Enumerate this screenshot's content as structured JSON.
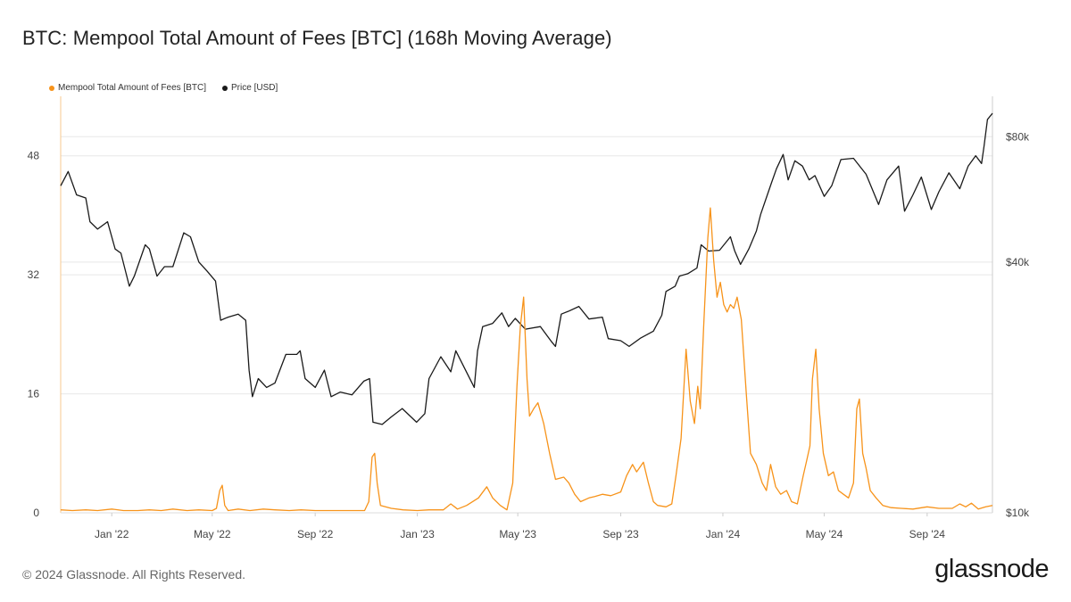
{
  "title": "BTC: Mempool Total Amount of Fees [BTC] (168h Moving Average)",
  "footer": "© 2024 Glassnode. All Rights Reserved.",
  "logo": "glassnode",
  "colors": {
    "fees": "#f7931a",
    "price": "#1a1a1a",
    "grid": "#e8e8e8"
  },
  "chart_data": {
    "type": "line",
    "title": "BTC: Mempool Total Amount of Fees [BTC] (168h Moving Average)",
    "legend": "top-left",
    "grid": true,
    "x_ticks": [
      "Jan '22",
      "May '22",
      "Sep '22",
      "Jan '23",
      "May '23",
      "Sep '23",
      "Jan '24",
      "May '24",
      "Sep '24"
    ],
    "x_tick_dates": [
      "2022-01-01",
      "2022-05-01",
      "2022-09-01",
      "2023-01-01",
      "2023-05-01",
      "2023-09-01",
      "2024-01-01",
      "2024-05-01",
      "2024-09-01"
    ],
    "xlim": [
      "2021-11-01",
      "2024-11-18"
    ],
    "y_left": {
      "ticks": [
        "0",
        "16",
        "32",
        "48"
      ],
      "values": [
        0,
        16,
        32,
        48
      ],
      "ylim": [
        0,
        56
      ]
    },
    "y_right": {
      "ticks": [
        "$10k",
        "$40k",
        "$80k"
      ],
      "values": [
        10000,
        40000,
        80000
      ],
      "scale": "log",
      "ylim": [
        10000,
        100000
      ]
    },
    "series": [
      {
        "name": "Mempool Total Amount of Fees [BTC]",
        "axis": "left",
        "points": [
          [
            "2021-11-01",
            0.4
          ],
          [
            "2021-11-15",
            0.3
          ],
          [
            "2021-12-01",
            0.4
          ],
          [
            "2021-12-15",
            0.3
          ],
          [
            "2022-01-01",
            0.5
          ],
          [
            "2022-01-15",
            0.3
          ],
          [
            "2022-02-01",
            0.3
          ],
          [
            "2022-02-15",
            0.4
          ],
          [
            "2022-03-01",
            0.3
          ],
          [
            "2022-03-15",
            0.5
          ],
          [
            "2022-04-01",
            0.3
          ],
          [
            "2022-04-15",
            0.4
          ],
          [
            "2022-05-01",
            0.3
          ],
          [
            "2022-05-06",
            0.6
          ],
          [
            "2022-05-10",
            3.0
          ],
          [
            "2022-05-13",
            3.7
          ],
          [
            "2022-05-16",
            1.0
          ],
          [
            "2022-05-20",
            0.3
          ],
          [
            "2022-06-01",
            0.5
          ],
          [
            "2022-06-15",
            0.3
          ],
          [
            "2022-07-01",
            0.5
          ],
          [
            "2022-07-15",
            0.4
          ],
          [
            "2022-08-01",
            0.3
          ],
          [
            "2022-08-15",
            0.4
          ],
          [
            "2022-09-01",
            0.3
          ],
          [
            "2022-09-15",
            0.3
          ],
          [
            "2022-10-01",
            0.3
          ],
          [
            "2022-10-15",
            0.3
          ],
          [
            "2022-10-30",
            0.3
          ],
          [
            "2022-11-04",
            1.5
          ],
          [
            "2022-11-08",
            7.5
          ],
          [
            "2022-11-11",
            8.0
          ],
          [
            "2022-11-14",
            4.0
          ],
          [
            "2022-11-18",
            1.0
          ],
          [
            "2022-12-01",
            0.6
          ],
          [
            "2022-12-15",
            0.4
          ],
          [
            "2023-01-01",
            0.3
          ],
          [
            "2023-01-15",
            0.4
          ],
          [
            "2023-02-01",
            0.4
          ],
          [
            "2023-02-10",
            1.2
          ],
          [
            "2023-02-18",
            0.5
          ],
          [
            "2023-03-01",
            1.0
          ],
          [
            "2023-03-15",
            2.0
          ],
          [
            "2023-03-25",
            3.5
          ],
          [
            "2023-04-01",
            2.0
          ],
          [
            "2023-04-10",
            1.0
          ],
          [
            "2023-04-18",
            0.4
          ],
          [
            "2023-04-25",
            4.0
          ],
          [
            "2023-04-30",
            17.0
          ],
          [
            "2023-05-04",
            25.0
          ],
          [
            "2023-05-08",
            29.0
          ],
          [
            "2023-05-12",
            18.0
          ],
          [
            "2023-05-15",
            13.0
          ],
          [
            "2023-05-20",
            14.0
          ],
          [
            "2023-05-25",
            14.8
          ],
          [
            "2023-06-01",
            12.0
          ],
          [
            "2023-06-08",
            8.0
          ],
          [
            "2023-06-15",
            4.5
          ],
          [
            "2023-06-25",
            4.8
          ],
          [
            "2023-07-01",
            4.0
          ],
          [
            "2023-07-08",
            2.5
          ],
          [
            "2023-07-15",
            1.5
          ],
          [
            "2023-07-25",
            2.0
          ],
          [
            "2023-08-01",
            2.2
          ],
          [
            "2023-08-10",
            2.5
          ],
          [
            "2023-08-20",
            2.3
          ],
          [
            "2023-09-01",
            2.8
          ],
          [
            "2023-09-08",
            5.0
          ],
          [
            "2023-09-15",
            6.5
          ],
          [
            "2023-09-20",
            5.5
          ],
          [
            "2023-09-28",
            6.8
          ],
          [
            "2023-10-04",
            4.0
          ],
          [
            "2023-10-10",
            1.5
          ],
          [
            "2023-10-15",
            1.0
          ],
          [
            "2023-10-25",
            0.8
          ],
          [
            "2023-11-01",
            1.2
          ],
          [
            "2023-11-06",
            5.0
          ],
          [
            "2023-11-12",
            10.0
          ],
          [
            "2023-11-18",
            22.0
          ],
          [
            "2023-11-23",
            15.0
          ],
          [
            "2023-11-28",
            12.0
          ],
          [
            "2023-12-02",
            17.0
          ],
          [
            "2023-12-05",
            14.0
          ],
          [
            "2023-12-09",
            25.0
          ],
          [
            "2023-12-14",
            37.0
          ],
          [
            "2023-12-17",
            41.0
          ],
          [
            "2023-12-21",
            34.0
          ],
          [
            "2023-12-25",
            29.0
          ],
          [
            "2023-12-29",
            31.0
          ],
          [
            "2024-01-02",
            28.0
          ],
          [
            "2024-01-06",
            27.0
          ],
          [
            "2024-01-10",
            28.0
          ],
          [
            "2024-01-14",
            27.5
          ],
          [
            "2024-01-18",
            29.0
          ],
          [
            "2024-01-23",
            26.0
          ],
          [
            "2024-01-29",
            16.0
          ],
          [
            "2024-02-03",
            8.0
          ],
          [
            "2024-02-10",
            6.5
          ],
          [
            "2024-02-17",
            4.0
          ],
          [
            "2024-02-22",
            3.0
          ],
          [
            "2024-02-27",
            6.5
          ],
          [
            "2024-03-04",
            3.5
          ],
          [
            "2024-03-10",
            2.5
          ],
          [
            "2024-03-17",
            3.0
          ],
          [
            "2024-03-23",
            1.5
          ],
          [
            "2024-03-30",
            1.2
          ],
          [
            "2024-04-06",
            5.0
          ],
          [
            "2024-04-10",
            7.0
          ],
          [
            "2024-04-14",
            9.0
          ],
          [
            "2024-04-17",
            18.0
          ],
          [
            "2024-04-21",
            22.0
          ],
          [
            "2024-04-25",
            14.0
          ],
          [
            "2024-04-30",
            8.0
          ],
          [
            "2024-05-06",
            5.0
          ],
          [
            "2024-05-12",
            5.5
          ],
          [
            "2024-05-18",
            3.0
          ],
          [
            "2024-05-24",
            2.5
          ],
          [
            "2024-05-30",
            2.0
          ],
          [
            "2024-06-05",
            4.0
          ],
          [
            "2024-06-09",
            14.0
          ],
          [
            "2024-06-12",
            15.3
          ],
          [
            "2024-06-16",
            8.0
          ],
          [
            "2024-06-20",
            6.0
          ],
          [
            "2024-06-25",
            3.0
          ],
          [
            "2024-07-02",
            2.0
          ],
          [
            "2024-07-10",
            1.0
          ],
          [
            "2024-07-20",
            0.7
          ],
          [
            "2024-08-01",
            0.6
          ],
          [
            "2024-08-15",
            0.5
          ],
          [
            "2024-09-01",
            0.8
          ],
          [
            "2024-09-15",
            0.6
          ],
          [
            "2024-10-01",
            0.6
          ],
          [
            "2024-10-10",
            1.2
          ],
          [
            "2024-10-17",
            0.8
          ],
          [
            "2024-10-24",
            1.3
          ],
          [
            "2024-11-01",
            0.5
          ],
          [
            "2024-11-10",
            0.8
          ],
          [
            "2024-11-18",
            1.0
          ]
        ]
      },
      {
        "name": "Price [USD]",
        "axis": "right",
        "points": [
          [
            "2021-11-01",
            61000
          ],
          [
            "2021-11-10",
            66000
          ],
          [
            "2021-11-20",
            58000
          ],
          [
            "2021-12-01",
            57000
          ],
          [
            "2021-12-06",
            50000
          ],
          [
            "2021-12-15",
            48000
          ],
          [
            "2021-12-27",
            50000
          ],
          [
            "2022-01-05",
            43000
          ],
          [
            "2022-01-12",
            42000
          ],
          [
            "2022-01-22",
            35000
          ],
          [
            "2022-01-28",
            37000
          ],
          [
            "2022-02-10",
            44000
          ],
          [
            "2022-02-15",
            43000
          ],
          [
            "2022-02-24",
            37000
          ],
          [
            "2022-03-05",
            39000
          ],
          [
            "2022-03-15",
            39000
          ],
          [
            "2022-03-28",
            47000
          ],
          [
            "2022-04-05",
            46000
          ],
          [
            "2022-04-15",
            40000
          ],
          [
            "2022-04-25",
            38000
          ],
          [
            "2022-05-05",
            36000
          ],
          [
            "2022-05-11",
            29000
          ],
          [
            "2022-05-20",
            29500
          ],
          [
            "2022-06-01",
            30000
          ],
          [
            "2022-06-10",
            29000
          ],
          [
            "2022-06-14",
            22000
          ],
          [
            "2022-06-18",
            19000
          ],
          [
            "2022-06-25",
            21000
          ],
          [
            "2022-07-05",
            20000
          ],
          [
            "2022-07-15",
            20500
          ],
          [
            "2022-07-28",
            24000
          ],
          [
            "2022-08-10",
            24000
          ],
          [
            "2022-08-14",
            24500
          ],
          [
            "2022-08-20",
            21000
          ],
          [
            "2022-09-01",
            20000
          ],
          [
            "2022-09-12",
            22000
          ],
          [
            "2022-09-20",
            19000
          ],
          [
            "2022-10-01",
            19500
          ],
          [
            "2022-10-15",
            19200
          ],
          [
            "2022-10-29",
            20700
          ],
          [
            "2022-11-05",
            21000
          ],
          [
            "2022-11-09",
            16500
          ],
          [
            "2022-11-20",
            16300
          ],
          [
            "2022-12-01",
            17000
          ],
          [
            "2022-12-14",
            17800
          ],
          [
            "2022-12-31",
            16500
          ],
          [
            "2023-01-10",
            17300
          ],
          [
            "2023-01-15",
            21000
          ],
          [
            "2023-01-29",
            23700
          ],
          [
            "2023-02-10",
            21800
          ],
          [
            "2023-02-16",
            24500
          ],
          [
            "2023-03-10",
            20000
          ],
          [
            "2023-03-14",
            24500
          ],
          [
            "2023-03-20",
            28000
          ],
          [
            "2023-04-01",
            28500
          ],
          [
            "2023-04-12",
            30200
          ],
          [
            "2023-04-20",
            28000
          ],
          [
            "2023-04-28",
            29300
          ],
          [
            "2023-05-10",
            27600
          ],
          [
            "2023-05-28",
            28000
          ],
          [
            "2023-06-10",
            25800
          ],
          [
            "2023-06-15",
            25100
          ],
          [
            "2023-06-22",
            30000
          ],
          [
            "2023-07-01",
            30500
          ],
          [
            "2023-07-13",
            31300
          ],
          [
            "2023-07-25",
            29200
          ],
          [
            "2023-08-10",
            29500
          ],
          [
            "2023-08-17",
            26200
          ],
          [
            "2023-09-01",
            25900
          ],
          [
            "2023-09-11",
            25100
          ],
          [
            "2023-09-25",
            26300
          ],
          [
            "2023-10-10",
            27300
          ],
          [
            "2023-10-20",
            29800
          ],
          [
            "2023-10-25",
            34000
          ],
          [
            "2023-11-05",
            35000
          ],
          [
            "2023-11-10",
            37000
          ],
          [
            "2023-11-20",
            37500
          ],
          [
            "2023-12-01",
            38700
          ],
          [
            "2023-12-06",
            44000
          ],
          [
            "2023-12-15",
            42500
          ],
          [
            "2023-12-28",
            42700
          ],
          [
            "2024-01-10",
            46000
          ],
          [
            "2024-01-15",
            42600
          ],
          [
            "2024-01-22",
            39500
          ],
          [
            "2024-02-01",
            43000
          ],
          [
            "2024-02-10",
            47500
          ],
          [
            "2024-02-15",
            52000
          ],
          [
            "2024-02-28",
            62000
          ],
          [
            "2024-03-05",
            67000
          ],
          [
            "2024-03-13",
            72500
          ],
          [
            "2024-03-19",
            63000
          ],
          [
            "2024-03-27",
            70000
          ],
          [
            "2024-04-05",
            68000
          ],
          [
            "2024-04-13",
            63000
          ],
          [
            "2024-04-20",
            64500
          ],
          [
            "2024-05-01",
            57500
          ],
          [
            "2024-05-10",
            61000
          ],
          [
            "2024-05-21",
            70500
          ],
          [
            "2024-06-05",
            71000
          ],
          [
            "2024-06-20",
            65000
          ],
          [
            "2024-07-05",
            55000
          ],
          [
            "2024-07-15",
            63000
          ],
          [
            "2024-07-29",
            68000
          ],
          [
            "2024-08-05",
            53000
          ],
          [
            "2024-08-15",
            58000
          ],
          [
            "2024-08-25",
            64000
          ],
          [
            "2024-09-06",
            53500
          ],
          [
            "2024-09-15",
            59000
          ],
          [
            "2024-09-27",
            65500
          ],
          [
            "2024-10-10",
            60000
          ],
          [
            "2024-10-20",
            68000
          ],
          [
            "2024-10-29",
            72000
          ],
          [
            "2024-11-05",
            69000
          ],
          [
            "2024-11-08",
            76000
          ],
          [
            "2024-11-12",
            88000
          ],
          [
            "2024-11-18",
            91000
          ]
        ]
      }
    ]
  }
}
